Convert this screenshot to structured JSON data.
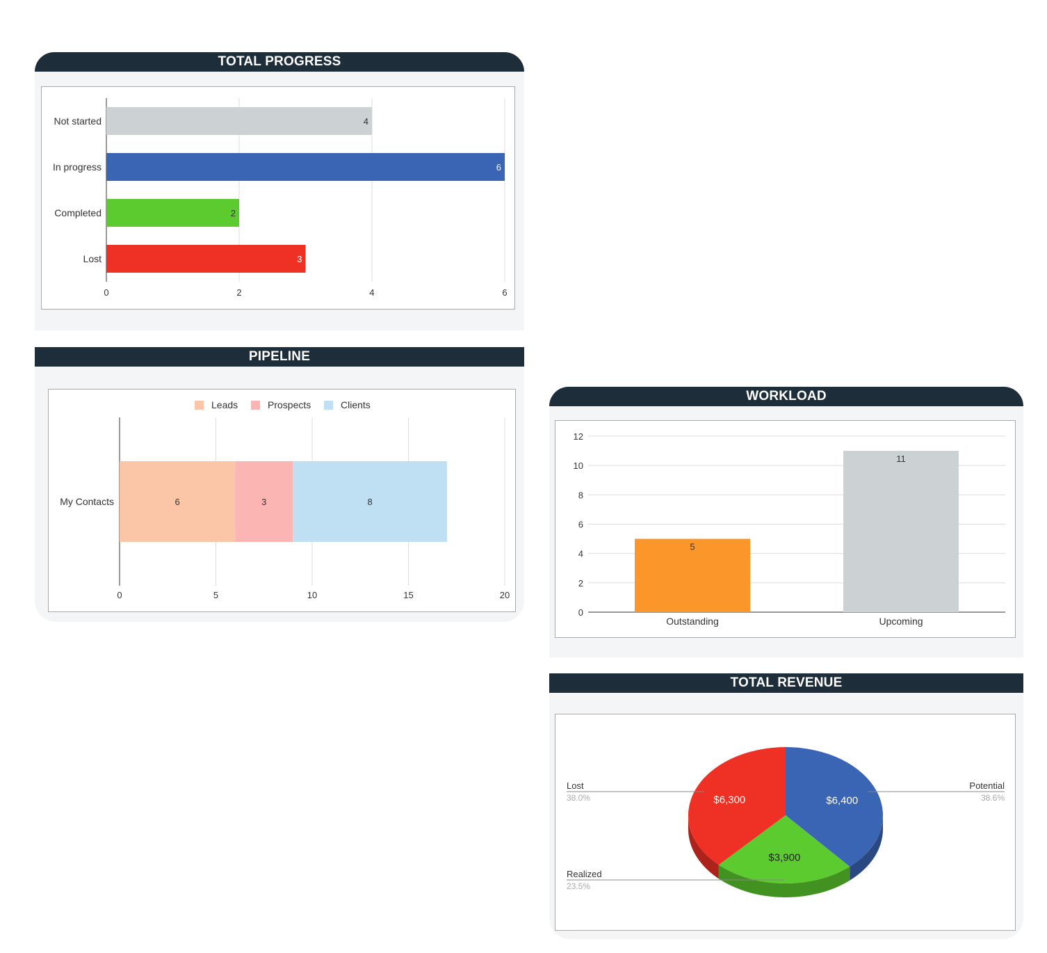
{
  "cards": {
    "progress": {
      "title": "TOTAL PROGRESS"
    },
    "pipeline": {
      "title": "PIPELINE"
    },
    "workload": {
      "title": "WORKLOAD"
    },
    "revenue": {
      "title": "TOTAL REVENUE"
    }
  },
  "colors": {
    "header_bg": "#1e2d3a",
    "not_started": "#ccd1d3",
    "in_progress": "#3a65b4",
    "completed": "#5ccb2f",
    "lost": "#ee3124",
    "leads": "#fbc6a8",
    "prospects": "#fbb6b4",
    "clients": "#bfdff3",
    "outstanding": "#fb962a",
    "upcoming": "#ccd1d3",
    "potential": "#3a65b4",
    "realized": "#5ccb2f"
  },
  "chart_data": [
    {
      "id": "progress",
      "type": "bar",
      "orientation": "horizontal",
      "title": "TOTAL PROGRESS",
      "categories": [
        "Not started",
        "In progress",
        "Completed",
        "Lost"
      ],
      "values": [
        4,
        6,
        2,
        3
      ],
      "data_labels": [
        "4",
        "6",
        "2",
        "3"
      ],
      "colors": [
        "#ccd1d3",
        "#3a65b4",
        "#5ccb2f",
        "#ee3124"
      ],
      "label_colors": [
        "#333333",
        "#ffffff",
        "#333333",
        "#ffffff"
      ],
      "xlim": [
        0,
        6
      ],
      "xticks": [
        0,
        2,
        4,
        6
      ],
      "grid": true
    },
    {
      "id": "pipeline",
      "type": "bar",
      "orientation": "horizontal",
      "stacked": true,
      "title": "PIPELINE",
      "categories": [
        "My Contacts"
      ],
      "series": [
        {
          "name": "Leads",
          "values": [
            6
          ],
          "color": "#fbc6a8"
        },
        {
          "name": "Prospects",
          "values": [
            3
          ],
          "color": "#fbb6b4"
        },
        {
          "name": "Clients",
          "values": [
            8
          ],
          "color": "#bfdff3"
        }
      ],
      "xlim": [
        0,
        20
      ],
      "xticks": [
        0,
        5,
        10,
        15,
        20
      ],
      "legend": "top",
      "grid": true
    },
    {
      "id": "workload",
      "type": "bar",
      "orientation": "vertical",
      "title": "WORKLOAD",
      "categories": [
        "Outstanding",
        "Upcoming"
      ],
      "values": [
        5,
        11
      ],
      "data_labels": [
        "5",
        "11"
      ],
      "colors": [
        "#fb962a",
        "#ccd1d3"
      ],
      "ylim": [
        0,
        12
      ],
      "yticks": [
        0,
        2,
        4,
        6,
        8,
        10,
        12
      ],
      "grid": true
    },
    {
      "id": "revenue",
      "type": "pie",
      "style": "3d",
      "title": "TOTAL REVENUE",
      "slices": [
        {
          "name": "Potential",
          "value": 6400,
          "label": "$6,400",
          "percent": "38.6%",
          "color": "#3a65b4"
        },
        {
          "name": "Realized",
          "value": 3900,
          "label": "$3,900",
          "percent": "23.5%",
          "color": "#5ccb2f"
        },
        {
          "name": "Lost",
          "value": 6300,
          "label": "$6,300",
          "percent": "38.0%",
          "color": "#ee3124"
        }
      ]
    }
  ]
}
